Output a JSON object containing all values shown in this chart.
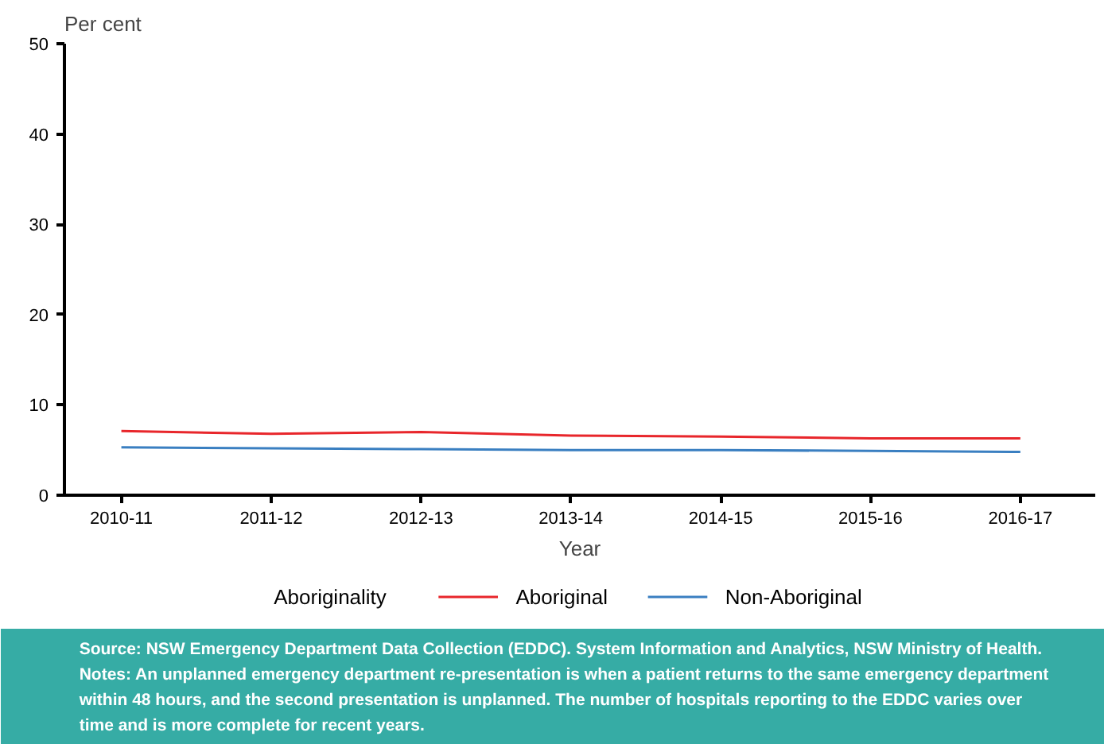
{
  "chart_data": {
    "type": "line",
    "xlabel": "Year",
    "ylabel": "Per cent",
    "legend_title": "Aboriginality",
    "legend": "bottom",
    "grid": false,
    "marker": "none",
    "line_style": "solid",
    "categories": [
      "2010-11",
      "2011-12",
      "2012-13",
      "2013-14",
      "2014-15",
      "2015-16",
      "2016-17"
    ],
    "ylim": [
      0,
      50
    ],
    "yticks": [
      0,
      10,
      20,
      30,
      40,
      50
    ],
    "series": [
      {
        "name": "Aboriginal",
        "color": "#e8262b",
        "values": [
          7.1,
          6.8,
          7.0,
          6.6,
          6.5,
          6.3,
          6.3
        ]
      },
      {
        "name": "Non-Aboriginal",
        "color": "#3a7fc1",
        "values": [
          5.3,
          5.2,
          5.1,
          5.0,
          5.0,
          4.9,
          4.8
        ]
      }
    ],
    "annotations": [
      "Source: NSW Emergency Department Data Collection (EDDC). System Information and Analytics, NSW Ministry of Health.",
      "Notes: An unplanned emergency department re-presentation is when a patient returns to the same emergency department within 48 hours, and the second presentation is unplanned. The number of hospitals reporting to the EDDC varies over time and is more complete for recent years."
    ]
  }
}
